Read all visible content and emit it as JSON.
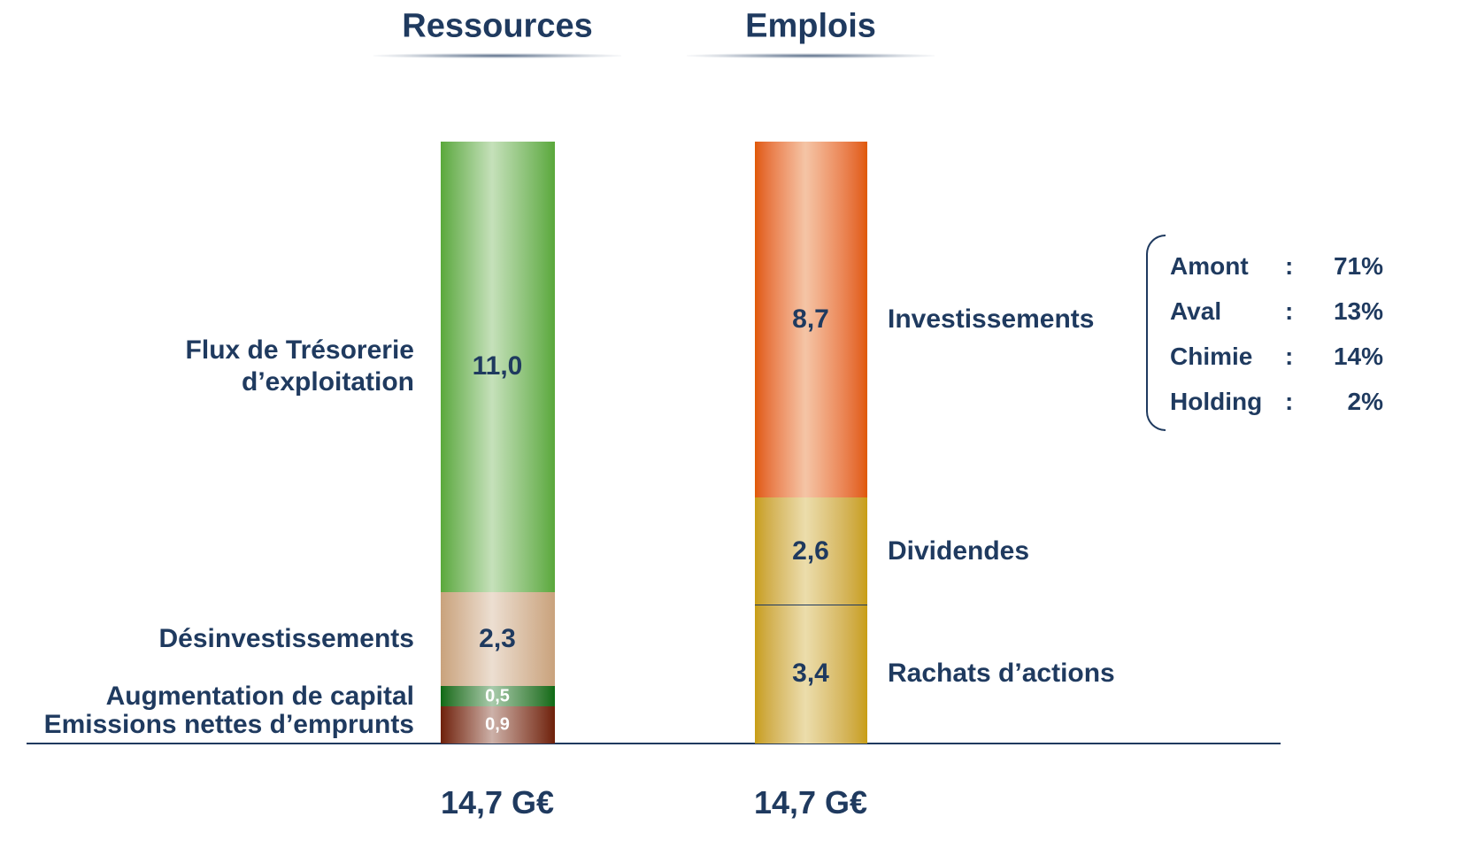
{
  "chart_data": {
    "type": "stacked-column",
    "stacks": [
      {
        "name": "Ressources",
        "total": "14,7 G€",
        "segments": [
          {
            "name": "Emissions nettes d’emprunts",
            "value": 0.9,
            "value_label": "0,9",
            "color": "#6e2008"
          },
          {
            "name": "Augmentation de capital",
            "value": 0.5,
            "value_label": "0,5",
            "color": "#0a6a12"
          },
          {
            "name": "Désinvestissements",
            "value": 2.3,
            "value_label": "2,3",
            "color": "#c9a27c"
          },
          {
            "name": "Flux de Trésorerie\nd’exploitation",
            "value": 11.0,
            "value_label": "11,0",
            "color": "#5aa83a"
          }
        ]
      },
      {
        "name": "Emplois",
        "total": "14,7 G€",
        "segments": [
          {
            "name": "Rachats d’actions",
            "value": 3.4,
            "value_label": "3,4",
            "color": "#c89e10"
          },
          {
            "name": "Dividendes",
            "value": 2.6,
            "value_label": "2,6",
            "color": "#c89e10"
          },
          {
            "name": "Investissements",
            "value": 8.7,
            "value_label": "8,7",
            "color": "#e05800"
          }
        ]
      }
    ],
    "breakdown": {
      "separator": ":",
      "items": [
        {
          "name": "Amont",
          "value": 71,
          "value_label": "71%"
        },
        {
          "name": "Aval",
          "value": 13,
          "value_label": "13%"
        },
        {
          "name": "Chimie",
          "value": 14,
          "value_label": "14%"
        },
        {
          "name": "Holding",
          "value": 2,
          "value_label": "2%"
        }
      ]
    }
  }
}
